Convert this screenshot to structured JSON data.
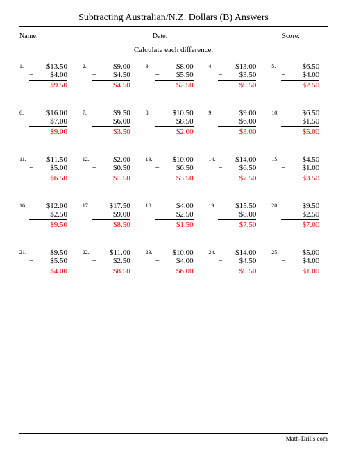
{
  "title": "Subtracting Australian/N.Z. Dollars (B) Answers",
  "labels": {
    "name": "Name:",
    "date": "Date:",
    "score": "Score:"
  },
  "instruction": "Calculate each difference.",
  "footer": "Math-Drills.com",
  "answer_color": "#ff0000",
  "problems": [
    {
      "n": "1.",
      "m": "$13.50",
      "s": "$4.00",
      "a": "$9.50"
    },
    {
      "n": "2.",
      "m": "$9.00",
      "s": "$4.50",
      "a": "$4.50"
    },
    {
      "n": "3.",
      "m": "$8.00",
      "s": "$5.50",
      "a": "$2.50"
    },
    {
      "n": "4.",
      "m": "$13.00",
      "s": "$3.50",
      "a": "$9.50"
    },
    {
      "n": "5.",
      "m": "$6.50",
      "s": "$4.00",
      "a": "$2.50"
    },
    {
      "n": "6.",
      "m": "$16.00",
      "s": "$7.00",
      "a": "$9.00"
    },
    {
      "n": "7.",
      "m": "$9.50",
      "s": "$6.00",
      "a": "$3.50"
    },
    {
      "n": "8.",
      "m": "$10.50",
      "s": "$8.50",
      "a": "$2.00"
    },
    {
      "n": "9.",
      "m": "$9.00",
      "s": "$6.00",
      "a": "$3.00"
    },
    {
      "n": "10.",
      "m": "$6.50",
      "s": "$1.50",
      "a": "$5.00"
    },
    {
      "n": "11.",
      "m": "$11.50",
      "s": "$5.00",
      "a": "$6.50"
    },
    {
      "n": "12.",
      "m": "$2.00",
      "s": "$0.50",
      "a": "$1.50"
    },
    {
      "n": "13.",
      "m": "$10.00",
      "s": "$6.50",
      "a": "$3.50"
    },
    {
      "n": "14.",
      "m": "$14.00",
      "s": "$6.50",
      "a": "$7.50"
    },
    {
      "n": "15.",
      "m": "$4.50",
      "s": "$1.00",
      "a": "$3.50"
    },
    {
      "n": "16.",
      "m": "$12.00",
      "s": "$2.50",
      "a": "$9.50"
    },
    {
      "n": "17.",
      "m": "$17.50",
      "s": "$9.00",
      "a": "$8.50"
    },
    {
      "n": "18.",
      "m": "$4.00",
      "s": "$2.50",
      "a": "$1.50"
    },
    {
      "n": "19.",
      "m": "$15.50",
      "s": "$8.00",
      "a": "$7.50"
    },
    {
      "n": "20.",
      "m": "$9.50",
      "s": "$2.50",
      "a": "$7.00"
    },
    {
      "n": "21.",
      "m": "$9.50",
      "s": "$5.50",
      "a": "$4.00"
    },
    {
      "n": "22.",
      "m": "$11.00",
      "s": "$2.50",
      "a": "$8.50"
    },
    {
      "n": "23.",
      "m": "$10.00",
      "s": "$4.00",
      "a": "$6.00"
    },
    {
      "n": "24.",
      "m": "$14.00",
      "s": "$4.50",
      "a": "$9.50"
    },
    {
      "n": "25.",
      "m": "$5.00",
      "s": "$4.00",
      "a": "$1.00"
    }
  ]
}
